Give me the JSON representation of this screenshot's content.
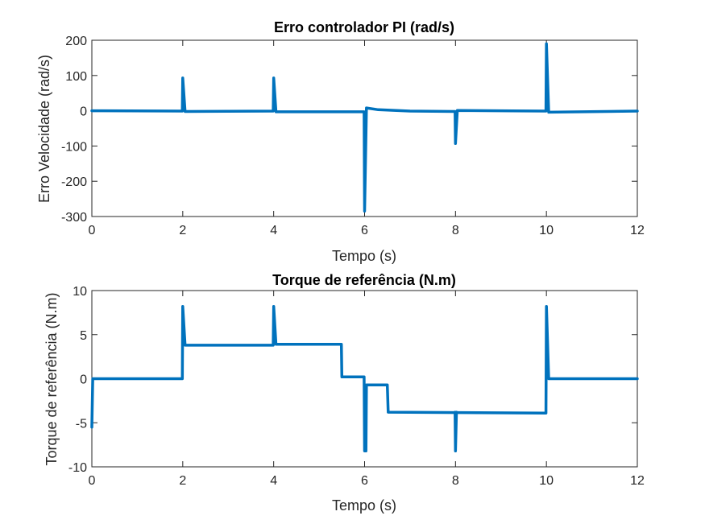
{
  "chart_data": [
    {
      "type": "line",
      "title": "Erro controlador PI (rad/s)",
      "xlabel": "Tempo (s)",
      "ylabel": "Erro Velocidade (rad/s)",
      "xlim": [
        0,
        12
      ],
      "ylim": [
        -300,
        200
      ],
      "xticks": [
        0,
        2,
        4,
        6,
        8,
        10,
        12
      ],
      "yticks": [
        -300,
        -200,
        -100,
        0,
        100,
        200
      ],
      "grid": false,
      "color": "#0072BD",
      "series": [
        {
          "x": [
            0,
            1.99,
            2.0,
            2.05,
            3.99,
            4.0,
            4.05,
            5.99,
            6.0,
            6.04,
            6.3,
            7.0,
            7.99,
            8.0,
            8.04,
            9.99,
            10.0,
            10.05,
            12
          ],
          "y": [
            0,
            -1,
            93,
            -2,
            -1,
            93,
            -3,
            -3,
            -285,
            8,
            3,
            -1,
            -2,
            -93,
            1,
            -1,
            190,
            -4,
            -1
          ]
        }
      ]
    },
    {
      "type": "line",
      "title": "Torque de referência (N.m)",
      "xlabel": "Tempo (s)",
      "ylabel": "Torque de referência (N.m)",
      "xlim": [
        0,
        12
      ],
      "ylim": [
        -10,
        10
      ],
      "xticks": [
        0,
        2,
        4,
        6,
        8,
        10,
        12
      ],
      "yticks": [
        -10,
        -5,
        0,
        5,
        10
      ],
      "grid": false,
      "color": "#0072BD",
      "series": [
        {
          "x": [
            0,
            0.02,
            1.99,
            2.0,
            2.05,
            3.99,
            4.0,
            4.05,
            5.49,
            5.5,
            5.99,
            6.0,
            6.03,
            6.04,
            6.06,
            6.5,
            6.52,
            9.99,
            10.0,
            10.05,
            12
          ],
          "y": [
            -5.5,
            0,
            0,
            8.2,
            3.8,
            3.8,
            8.2,
            3.9,
            3.9,
            0.2,
            0.2,
            -8.2,
            -8.2,
            -0.7,
            -0.7,
            -0.7,
            -3.8,
            -3.9,
            8.2,
            0,
            0
          ]
        },
        {
          "x": [
            7.99,
            8.0,
            8.02
          ],
          "y": [
            -3.8,
            -8.2,
            -3.8
          ]
        }
      ]
    }
  ]
}
